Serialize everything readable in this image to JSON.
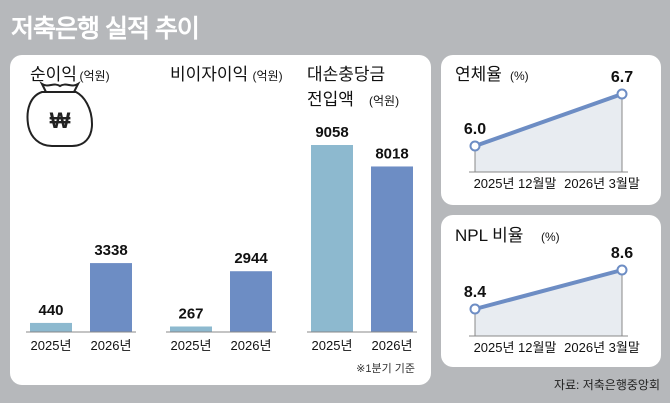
{
  "title": "저축은행 실적 추이",
  "note": "※1분기 기준",
  "source": "자료: 저축은행중앙회",
  "colors": {
    "bar_2025": "#8db9cf",
    "bar_2026": "#6d8dc4",
    "line": "#6d8dc4",
    "area": "#e8ecf1"
  },
  "chart_data": [
    {
      "type": "bar",
      "title": "순이익",
      "unit": "(억원)",
      "categories": [
        "2025년",
        "2026년"
      ],
      "values": [
        440,
        3338
      ]
    },
    {
      "type": "bar",
      "title": "비이자이익",
      "unit": "(억원)",
      "categories": [
        "2025년",
        "2026년"
      ],
      "values": [
        267,
        2944
      ]
    },
    {
      "type": "bar",
      "title": "대손충당금",
      "title2": "전입액",
      "unit": "(억원)",
      "categories": [
        "2025년",
        "2026년"
      ],
      "values": [
        9058,
        8018
      ]
    },
    {
      "type": "line",
      "title": "연체율",
      "unit": "(%)",
      "categories": [
        "2025년 12월말",
        "2026년 3월말"
      ],
      "values": [
        6.0,
        6.7
      ],
      "labels": [
        "6.0",
        "6.7"
      ]
    },
    {
      "type": "line",
      "title": "NPL 비율",
      "unit": "(%)",
      "categories": [
        "2025년 12월말",
        "2026년 3월말"
      ],
      "values": [
        8.4,
        8.6
      ],
      "labels": [
        "8.4",
        "8.6"
      ]
    }
  ]
}
